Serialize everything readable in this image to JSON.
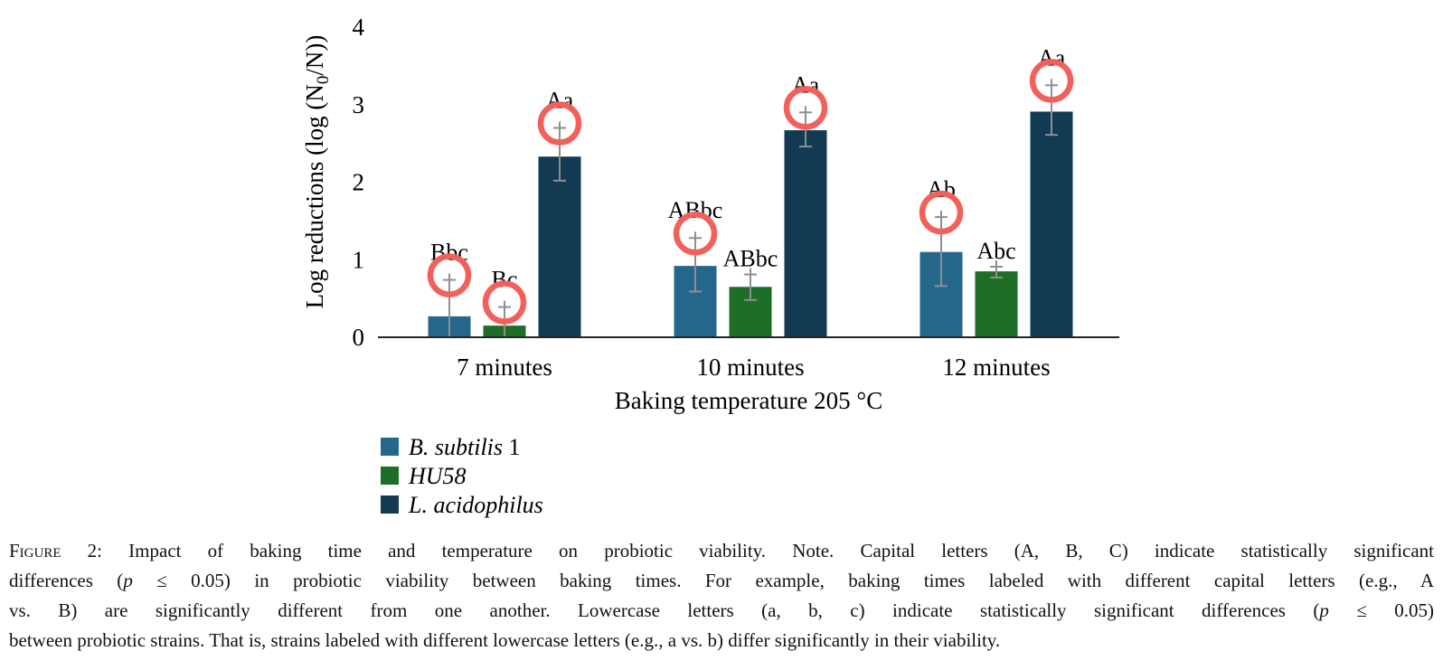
{
  "figure": {
    "caption_lines": [
      [
        {
          "t": "Figure",
          "sc": true
        },
        {
          "t": " 2: Impact of baking time and temperature on probiotic viability. Note. Capital letters (A, B, C) indicate statistically significant"
        }
      ],
      [
        {
          "t": "differences ("
        },
        {
          "t": "p",
          "i": true
        },
        {
          "t": " ≤ 0.05) in probiotic viability between baking times. For example, baking times labeled with different capital letters (e.g., A"
        }
      ],
      [
        {
          "t": "vs. B) are significantly different from one another. Lowercase letters (a, b, c) indicate statistically significant differences ("
        },
        {
          "t": "p",
          "i": true
        },
        {
          "t": " ≤ 0.05)"
        }
      ],
      [
        {
          "t": "between probiotic strains. That is, strains labeled with different lowercase letters (e.g., a vs. b) differ significantly in their viability."
        }
      ]
    ]
  },
  "chart_data": {
    "type": "bar",
    "categories": [
      "7 minutes",
      "10 minutes",
      "12 minutes"
    ],
    "xlabel": "Baking temperature 205 °C",
    "ylabel": "Log reductions (log (N0/N))",
    "ylabel_segments": [
      {
        "t": "Log reductions (log (N"
      },
      {
        "t": "0",
        "sub": true
      },
      {
        "t": "/N))"
      }
    ],
    "ylim": [
      0,
      4
    ],
    "yticks": [
      0,
      1,
      2,
      3,
      4
    ],
    "grid": false,
    "legend_position": "bottom-left",
    "annotation_color": "#F2605C",
    "error_bar_color": "#8F8F8F",
    "axis_color": "#262626",
    "series": [
      {
        "name": "B. subtilis 1",
        "name_segments": [
          {
            "t": "B. subtilis",
            "i": true
          },
          {
            "t": " 1"
          }
        ],
        "color": "#24678B",
        "values": [
          0.27,
          0.92,
          1.1
        ],
        "errors_up": [
          0.47,
          0.36,
          0.45
        ],
        "errors_down": [
          0.27,
          0.33,
          0.44
        ],
        "sig_labels": [
          "Bbc",
          "ABbc",
          "Ab"
        ],
        "circled": [
          true,
          true,
          true
        ]
      },
      {
        "name": "HU58",
        "name_segments": [
          {
            "t": "HU58",
            "i": true
          }
        ],
        "color": "#1E6E28",
        "values": [
          0.15,
          0.65,
          0.85
        ],
        "errors_up": [
          0.24,
          0.16,
          0.06
        ],
        "errors_down": [
          0.15,
          0.17,
          0.08
        ],
        "sig_labels": [
          "Bc",
          "ABbc",
          "Abc"
        ],
        "circled": [
          true,
          false,
          false
        ]
      },
      {
        "name": "L. acidophilus",
        "name_segments": [
          {
            "t": "L. acidophilus",
            "i": true
          }
        ],
        "color": "#123A52",
        "values": [
          2.33,
          2.67,
          2.91
        ],
        "errors_up": [
          0.37,
          0.23,
          0.34
        ],
        "errors_down": [
          0.31,
          0.21,
          0.3
        ],
        "sig_labels": [
          "Aa",
          "Aa",
          "Aa"
        ],
        "circled": [
          true,
          true,
          true
        ]
      }
    ]
  }
}
